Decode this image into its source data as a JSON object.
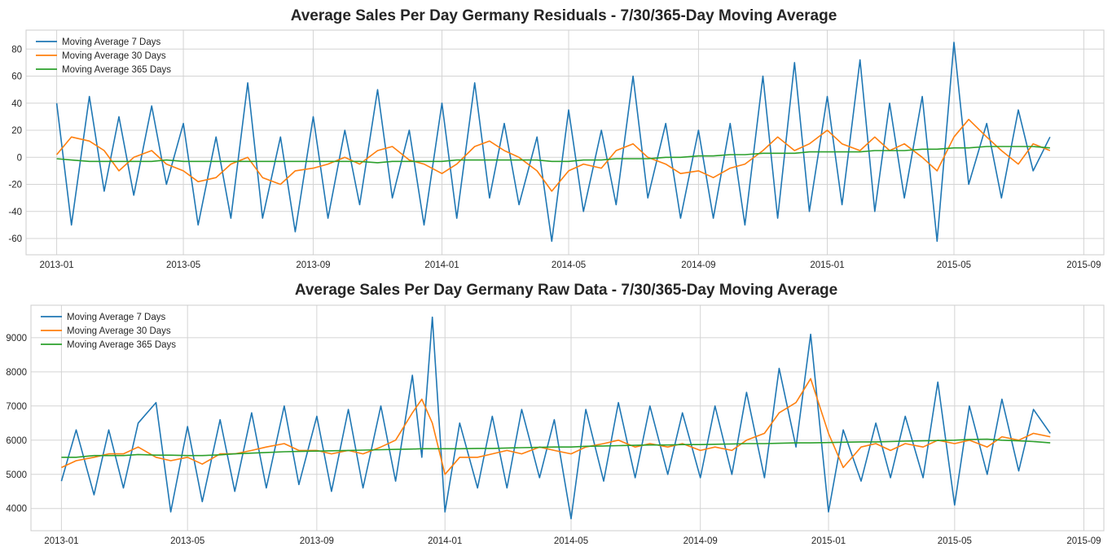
{
  "chart_data": [
    {
      "type": "line",
      "title": "Average Sales Per Day Germany Residuals - 7/30/365-Day Moving Average",
      "xlabel": "",
      "ylabel": "",
      "x_range": [
        "2012-12-03",
        "2015-09-20"
      ],
      "xticks": [
        "2013-01",
        "2013-05",
        "2013-09",
        "2014-01",
        "2014-05",
        "2014-09",
        "2015-01",
        "2015-05",
        "2015-09"
      ],
      "ylim": [
        -72,
        94
      ],
      "yticks": [
        -60,
        -40,
        -20,
        0,
        20,
        40,
        60,
        80
      ],
      "grid": true,
      "legend_position": "top-left",
      "x": [
        "2013-01-01",
        "2013-01-15",
        "2013-02-01",
        "2013-02-15",
        "2013-03-01",
        "2013-03-15",
        "2013-04-01",
        "2013-04-15",
        "2013-05-01",
        "2013-05-15",
        "2013-06-01",
        "2013-06-15",
        "2013-07-01",
        "2013-07-15",
        "2013-08-01",
        "2013-08-15",
        "2013-09-01",
        "2013-09-15",
        "2013-10-01",
        "2013-10-15",
        "2013-11-01",
        "2013-11-15",
        "2013-12-01",
        "2013-12-15",
        "2014-01-01",
        "2014-01-15",
        "2014-02-01",
        "2014-02-15",
        "2014-03-01",
        "2014-03-15",
        "2014-04-01",
        "2014-04-15",
        "2014-05-01",
        "2014-05-15",
        "2014-06-01",
        "2014-06-15",
        "2014-07-01",
        "2014-07-15",
        "2014-08-01",
        "2014-08-15",
        "2014-09-01",
        "2014-09-15",
        "2014-10-01",
        "2014-10-15",
        "2014-11-01",
        "2014-11-15",
        "2014-12-01",
        "2014-12-15",
        "2015-01-01",
        "2015-01-15",
        "2015-02-01",
        "2015-02-15",
        "2015-03-01",
        "2015-03-15",
        "2015-04-01",
        "2015-04-15",
        "2015-05-01",
        "2015-05-15",
        "2015-06-01",
        "2015-06-15",
        "2015-07-01",
        "2015-07-15",
        "2015-07-31"
      ],
      "series": [
        {
          "name": "Moving Average 7 Days",
          "color": "#1f77b4",
          "values": [
            40,
            -50,
            45,
            -25,
            30,
            -28,
            38,
            -20,
            25,
            -50,
            15,
            -45,
            55,
            -45,
            15,
            -55,
            30,
            -45,
            20,
            -35,
            50,
            -30,
            20,
            -50,
            40,
            -45,
            55,
            -30,
            25,
            -35,
            15,
            -62,
            35,
            -40,
            20,
            -35,
            60,
            -30,
            25,
            -45,
            20,
            -45,
            25,
            -50,
            60,
            -45,
            70,
            -40,
            45,
            -35,
            72,
            -40,
            40,
            -30,
            45,
            -62,
            85,
            -20,
            25,
            -30,
            35,
            -10,
            15
          ]
        },
        {
          "name": "Moving Average 30 Days",
          "color": "#ff7f0e",
          "values": [
            2,
            15,
            12,
            5,
            -10,
            0,
            5,
            -5,
            -10,
            -18,
            -15,
            -5,
            0,
            -15,
            -20,
            -10,
            -8,
            -5,
            0,
            -5,
            5,
            8,
            -2,
            -5,
            -12,
            -5,
            8,
            12,
            5,
            0,
            -10,
            -25,
            -10,
            -5,
            -8,
            5,
            10,
            0,
            -5,
            -12,
            -10,
            -15,
            -8,
            -5,
            5,
            15,
            5,
            10,
            20,
            10,
            5,
            15,
            5,
            10,
            0,
            -10,
            15,
            28,
            15,
            5,
            -5,
            10,
            5
          ]
        },
        {
          "name": "Moving Average 365 Days",
          "color": "#2ca02c",
          "values": [
            -1,
            -2,
            -3,
            -3,
            -3,
            -3,
            -3,
            -2,
            -3,
            -3,
            -3,
            -3,
            -3,
            -3,
            -3,
            -3,
            -3,
            -3,
            -3,
            -3,
            -4,
            -3,
            -3,
            -3,
            -3,
            -2,
            -2,
            -2,
            -2,
            -2,
            -2,
            -3,
            -3,
            -2,
            -2,
            -1,
            -1,
            -1,
            0,
            0,
            1,
            1,
            2,
            2,
            3,
            3,
            3,
            4,
            4,
            4,
            4,
            5,
            5,
            5,
            6,
            6,
            7,
            7,
            8,
            8,
            8,
            8,
            7
          ]
        }
      ]
    },
    {
      "type": "line",
      "title": "Average Sales Per Day Germany Raw Data - 7/30/365-Day Moving Average",
      "xlabel": "",
      "ylabel": "",
      "x_range": [
        "2012-12-03",
        "2015-09-20"
      ],
      "xticks": [
        "2013-01",
        "2013-05",
        "2013-09",
        "2014-01",
        "2014-05",
        "2014-09",
        "2015-01",
        "2015-05",
        "2015-09"
      ],
      "ylim": [
        3350,
        9950
      ],
      "yticks": [
        4000,
        5000,
        6000,
        7000,
        8000,
        9000
      ],
      "grid": true,
      "legend_position": "top-left",
      "x": [
        "2013-01-01",
        "2013-01-15",
        "2013-02-01",
        "2013-02-15",
        "2013-03-01",
        "2013-03-15",
        "2013-04-01",
        "2013-04-15",
        "2013-05-01",
        "2013-05-15",
        "2013-06-01",
        "2013-06-15",
        "2013-07-01",
        "2013-07-15",
        "2013-08-01",
        "2013-08-15",
        "2013-09-01",
        "2013-09-15",
        "2013-10-01",
        "2013-10-15",
        "2013-11-01",
        "2013-11-15",
        "2013-12-01",
        "2013-12-10",
        "2013-12-20",
        "2014-01-01",
        "2014-01-15",
        "2014-02-01",
        "2014-02-15",
        "2014-03-01",
        "2014-03-15",
        "2014-04-01",
        "2014-04-15",
        "2014-05-01",
        "2014-05-15",
        "2014-06-01",
        "2014-06-15",
        "2014-07-01",
        "2014-07-15",
        "2014-08-01",
        "2014-08-15",
        "2014-09-01",
        "2014-09-15",
        "2014-10-01",
        "2014-10-15",
        "2014-11-01",
        "2014-11-15",
        "2014-12-01",
        "2014-12-15",
        "2015-01-01",
        "2015-01-15",
        "2015-02-01",
        "2015-02-15",
        "2015-03-01",
        "2015-03-15",
        "2015-04-01",
        "2015-04-15",
        "2015-05-01",
        "2015-05-15",
        "2015-06-01",
        "2015-06-15",
        "2015-07-01",
        "2015-07-15",
        "2015-07-31"
      ],
      "series": [
        {
          "name": "Moving Average 7 Days",
          "color": "#1f77b4",
          "values": [
            4800,
            6300,
            4400,
            6300,
            4600,
            6500,
            7100,
            3900,
            6400,
            4200,
            6600,
            4500,
            6800,
            4600,
            7000,
            4700,
            6700,
            4500,
            6900,
            4600,
            7000,
            4800,
            7900,
            5500,
            9600,
            3900,
            6500,
            4600,
            6700,
            4600,
            6900,
            4900,
            6600,
            3700,
            6900,
            4800,
            7100,
            4900,
            7000,
            5000,
            6800,
            4900,
            7000,
            5000,
            7400,
            4900,
            8100,
            5800,
            9100,
            3900,
            6300,
            4800,
            6500,
            4900,
            6700,
            4900,
            7700,
            4100,
            7000,
            5000,
            7200,
            5100,
            6900,
            6200
          ]
        },
        {
          "name": "Moving Average 30 Days",
          "color": "#ff7f0e",
          "values": [
            5200,
            5400,
            5500,
            5600,
            5600,
            5800,
            5500,
            5400,
            5500,
            5300,
            5600,
            5600,
            5700,
            5800,
            5900,
            5700,
            5700,
            5600,
            5700,
            5600,
            5800,
            6000,
            6800,
            7200,
            6500,
            5000,
            5500,
            5500,
            5600,
            5700,
            5600,
            5800,
            5700,
            5600,
            5800,
            5900,
            6000,
            5800,
            5900,
            5800,
            5900,
            5700,
            5800,
            5700,
            6000,
            6200,
            6800,
            7100,
            7800,
            6200,
            5200,
            5800,
            5900,
            5700,
            5900,
            5800,
            6000,
            5900,
            6000,
            5800,
            6100,
            6000,
            6200,
            6100
          ]
        },
        {
          "name": "Moving Average 365 Days",
          "color": "#2ca02c",
          "values": [
            5500,
            5500,
            5550,
            5550,
            5550,
            5580,
            5560,
            5560,
            5550,
            5550,
            5570,
            5600,
            5620,
            5640,
            5660,
            5670,
            5680,
            5690,
            5700,
            5710,
            5720,
            5730,
            5740,
            5750,
            5750,
            5750,
            5750,
            5760,
            5760,
            5770,
            5780,
            5790,
            5800,
            5800,
            5820,
            5830,
            5840,
            5850,
            5860,
            5860,
            5870,
            5870,
            5880,
            5890,
            5900,
            5900,
            5910,
            5920,
            5920,
            5930,
            5940,
            5950,
            5950,
            5960,
            5970,
            5980,
            5990,
            6000,
            6020,
            6030,
            6000,
            5980,
            5960,
            5920
          ]
        }
      ]
    }
  ]
}
